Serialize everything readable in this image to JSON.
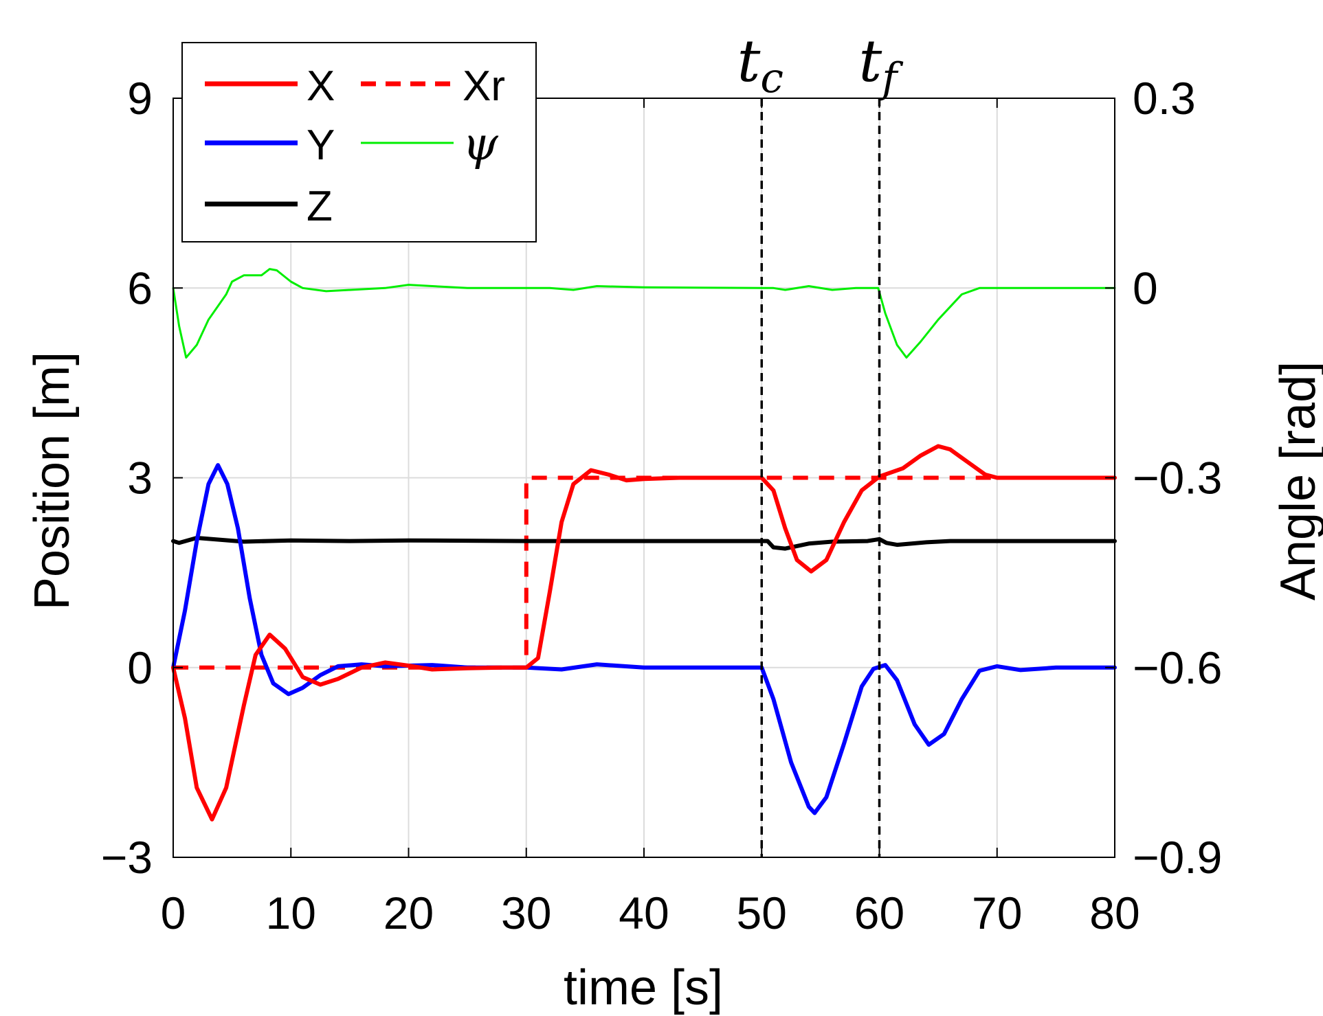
{
  "chart_data": {
    "type": "line",
    "xlabel": "time [s]",
    "ylabel_left": "Position [m]",
    "ylabel_right": "Angle [rad]",
    "xlim": [
      0,
      80
    ],
    "ylim_left": [
      -3,
      9
    ],
    "ylim_right": [
      -0.9,
      0.3
    ],
    "x_ticks": [
      "0",
      "10",
      "20",
      "30",
      "40",
      "50",
      "60",
      "70",
      "80"
    ],
    "y_ticks_left": [
      "−3",
      "0",
      "3",
      "6",
      "9"
    ],
    "y_ticks_right": [
      "−0.9",
      "−0.6",
      "−0.3",
      "0",
      "0.3"
    ],
    "grid": true,
    "legend_position": "top-left",
    "annotations": [
      {
        "label": "t",
        "subscript": "c",
        "x": 50
      },
      {
        "label": "t",
        "subscript": "f",
        "x": 60
      }
    ],
    "series": [
      {
        "name": "X",
        "axis": "left",
        "color": "#ff0000",
        "style": "solid",
        "points": [
          [
            0,
            0
          ],
          [
            1,
            -0.8
          ],
          [
            2,
            -1.9
          ],
          [
            3.3,
            -2.4
          ],
          [
            4.5,
            -1.9
          ],
          [
            6,
            -0.6
          ],
          [
            7,
            0.2
          ],
          [
            8.2,
            0.52
          ],
          [
            9.5,
            0.3
          ],
          [
            11,
            -0.15
          ],
          [
            12.5,
            -0.27
          ],
          [
            14,
            -0.18
          ],
          [
            16,
            0.0
          ],
          [
            18,
            0.08
          ],
          [
            20,
            0.03
          ],
          [
            22,
            -0.03
          ],
          [
            25,
            -0.01
          ],
          [
            28,
            0.0
          ],
          [
            30,
            0.0
          ],
          [
            31,
            0.15
          ],
          [
            32,
            1.2
          ],
          [
            33,
            2.3
          ],
          [
            34,
            2.9
          ],
          [
            35.5,
            3.12
          ],
          [
            37,
            3.05
          ],
          [
            38.5,
            2.96
          ],
          [
            40,
            2.98
          ],
          [
            43,
            3.0
          ],
          [
            50,
            3.0
          ],
          [
            51,
            2.8
          ],
          [
            52,
            2.2
          ],
          [
            53,
            1.7
          ],
          [
            54.2,
            1.52
          ],
          [
            55.5,
            1.7
          ],
          [
            57,
            2.3
          ],
          [
            58.5,
            2.8
          ],
          [
            60,
            3.02
          ],
          [
            62,
            3.15
          ],
          [
            63.5,
            3.35
          ],
          [
            65,
            3.5
          ],
          [
            66,
            3.45
          ],
          [
            67.5,
            3.25
          ],
          [
            69,
            3.05
          ],
          [
            70,
            3.0
          ],
          [
            75,
            3.0
          ],
          [
            80,
            3.0
          ]
        ]
      },
      {
        "name": "Xr",
        "axis": "left",
        "color": "#ff0000",
        "style": "dashed",
        "points": [
          [
            0,
            0
          ],
          [
            30,
            0
          ],
          [
            30,
            3
          ],
          [
            80,
            3
          ]
        ]
      },
      {
        "name": "Y",
        "axis": "left",
        "color": "#0000ff",
        "style": "solid",
        "points": [
          [
            0,
            0
          ],
          [
            1,
            0.9
          ],
          [
            2,
            2.0
          ],
          [
            3,
            2.9
          ],
          [
            3.8,
            3.2
          ],
          [
            4.6,
            2.9
          ],
          [
            5.5,
            2.2
          ],
          [
            6.5,
            1.1
          ],
          [
            7.5,
            0.2
          ],
          [
            8.5,
            -0.25
          ],
          [
            9.8,
            -0.42
          ],
          [
            11,
            -0.32
          ],
          [
            12.5,
            -0.12
          ],
          [
            14,
            0.02
          ],
          [
            16,
            0.05
          ],
          [
            18,
            0.02
          ],
          [
            22,
            0.04
          ],
          [
            25,
            0.0
          ],
          [
            30,
            0.0
          ],
          [
            33,
            -0.03
          ],
          [
            36,
            0.05
          ],
          [
            40,
            0.0
          ],
          [
            50,
            0.0
          ],
          [
            51,
            -0.5
          ],
          [
            52.5,
            -1.5
          ],
          [
            54,
            -2.2
          ],
          [
            54.5,
            -2.3
          ],
          [
            55.5,
            -2.05
          ],
          [
            57,
            -1.2
          ],
          [
            58.5,
            -0.3
          ],
          [
            59.5,
            -0.02
          ],
          [
            60.5,
            0.04
          ],
          [
            61.5,
            -0.2
          ],
          [
            63,
            -0.9
          ],
          [
            64.2,
            -1.22
          ],
          [
            65.5,
            -1.05
          ],
          [
            67,
            -0.5
          ],
          [
            68.5,
            -0.05
          ],
          [
            70,
            0.02
          ],
          [
            72,
            -0.04
          ],
          [
            75,
            0.0
          ],
          [
            80,
            0.0
          ]
        ]
      },
      {
        "name": "Z",
        "axis": "left",
        "color": "#000000",
        "style": "solid",
        "points": [
          [
            0,
            2.0
          ],
          [
            0.5,
            1.97
          ],
          [
            2,
            2.05
          ],
          [
            4,
            2.02
          ],
          [
            6,
            1.99
          ],
          [
            10,
            2.01
          ],
          [
            15,
            2.0
          ],
          [
            20,
            2.01
          ],
          [
            30,
            2.0
          ],
          [
            40,
            2.0
          ],
          [
            50,
            2.0
          ],
          [
            50.5,
            2.0
          ],
          [
            51,
            1.9
          ],
          [
            52,
            1.88
          ],
          [
            54,
            1.96
          ],
          [
            56,
            1.99
          ],
          [
            59,
            2.0
          ],
          [
            60,
            2.03
          ],
          [
            60.6,
            1.97
          ],
          [
            61.5,
            1.94
          ],
          [
            64,
            1.98
          ],
          [
            66,
            2.0
          ],
          [
            70,
            2.0
          ],
          [
            80,
            2.0
          ]
        ]
      },
      {
        "name": "ψ",
        "axis": "right",
        "color": "#00ee00",
        "style": "solid",
        "points": [
          [
            0,
            0.0
          ],
          [
            0.5,
            -0.06
          ],
          [
            1.1,
            -0.11
          ],
          [
            2,
            -0.09
          ],
          [
            3,
            -0.05
          ],
          [
            4.5,
            -0.01
          ],
          [
            5,
            0.01
          ],
          [
            6,
            0.02
          ],
          [
            7.5,
            0.02
          ],
          [
            8.2,
            0.03
          ],
          [
            8.8,
            0.028
          ],
          [
            10,
            0.01
          ],
          [
            11,
            0.0
          ],
          [
            13,
            -0.005
          ],
          [
            16,
            -0.002
          ],
          [
            18,
            0.0
          ],
          [
            20,
            0.005
          ],
          [
            25,
            0.0
          ],
          [
            30,
            0.0
          ],
          [
            32,
            0.0
          ],
          [
            34,
            -0.003
          ],
          [
            36,
            0.003
          ],
          [
            40,
            0.001
          ],
          [
            50,
            0.0
          ],
          [
            51,
            0.0
          ],
          [
            52,
            -0.003
          ],
          [
            54,
            0.003
          ],
          [
            56,
            -0.003
          ],
          [
            58,
            0.0
          ],
          [
            59.9,
            0.0
          ],
          [
            60.5,
            -0.04
          ],
          [
            61.5,
            -0.09
          ],
          [
            62.3,
            -0.11
          ],
          [
            63.5,
            -0.085
          ],
          [
            65,
            -0.05
          ],
          [
            67,
            -0.01
          ],
          [
            68.5,
            0.0
          ],
          [
            70,
            0.0
          ],
          [
            80,
            0.0
          ]
        ]
      }
    ]
  },
  "legend": [
    {
      "label": "X",
      "color": "#ff0000",
      "style": "solid",
      "width": "thick"
    },
    {
      "label": "Xr",
      "color": "#ff0000",
      "style": "dashed",
      "width": "thick"
    },
    {
      "label": "Y",
      "color": "#0000ff",
      "style": "solid",
      "width": "thick"
    },
    {
      "label": "ψ",
      "color": "#00ee00",
      "style": "solid",
      "width": "thin"
    },
    {
      "label": "Z",
      "color": "#000000",
      "style": "solid",
      "width": "thick"
    }
  ]
}
